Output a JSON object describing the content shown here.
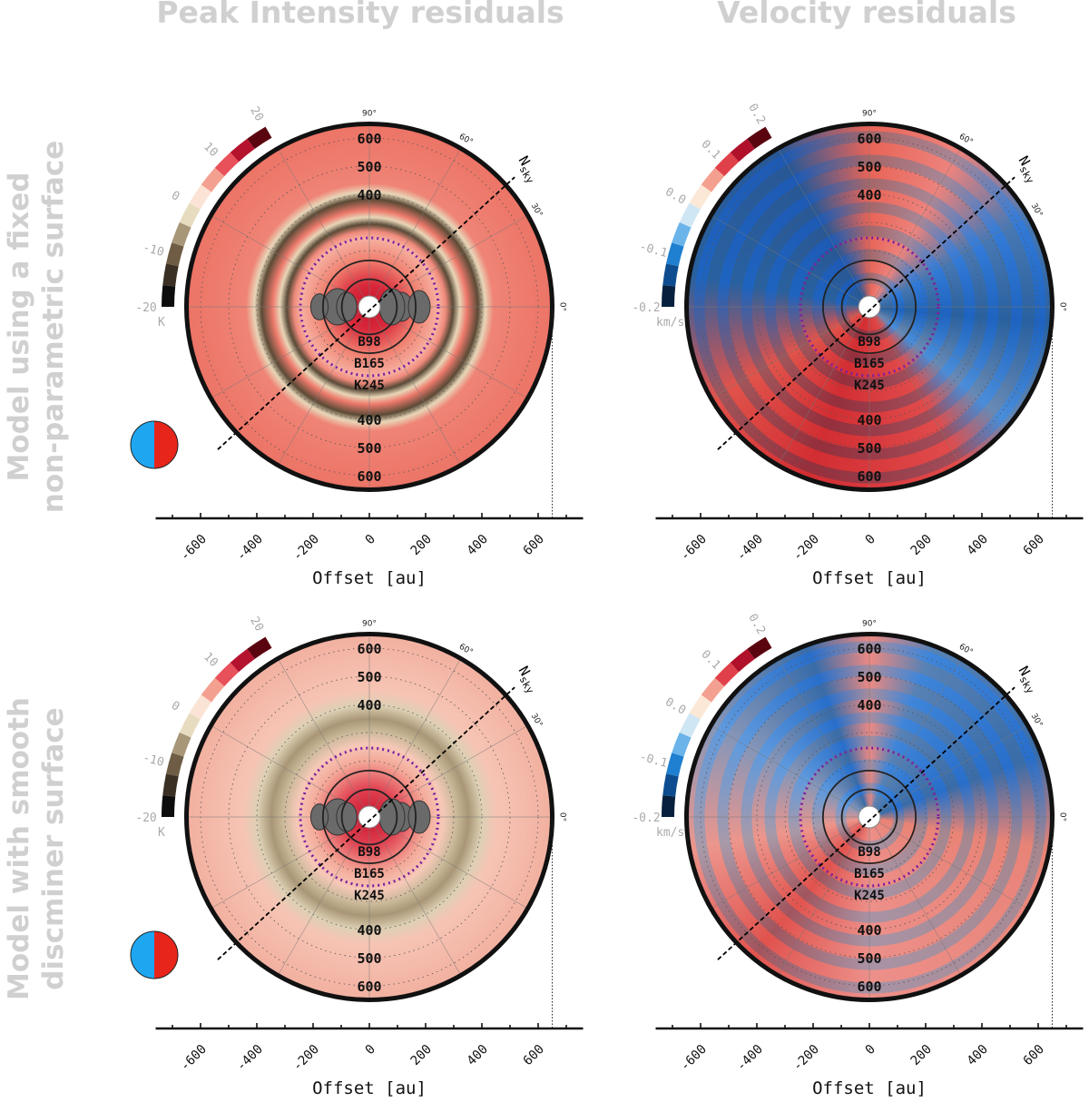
{
  "column_titles": [
    "Peak Intensity residuals",
    "Velocity residuals"
  ],
  "row_labels": [
    [
      "Model using a fixed",
      "non-parametric surface"
    ],
    [
      "Model with smooth",
      "discminer surface"
    ]
  ],
  "colors": {
    "red": "#e8251b",
    "blue": "#1ea7f0",
    "purple": "#7b1fa2",
    "label_gray": "#d0d0d0"
  },
  "chart_data": [
    {
      "type": "heatmap",
      "projection": "polar",
      "quantity": "Peak Intensity residuals",
      "row": 0,
      "colorbar": {
        "ticks": [
          "-20",
          "-10",
          "0",
          "10",
          "20"
        ],
        "range": [
          -20,
          20
        ],
        "unit": "K",
        "colormap": "black-brown-cream-red"
      },
      "radial_labels": [
        "400",
        "500",
        "600"
      ],
      "gap_labels": [
        "B98",
        "B165",
        "K245"
      ],
      "gap_radii": [
        98,
        165,
        245
      ],
      "angle_labels": [
        "90°",
        "60°",
        "30°",
        "0°"
      ],
      "north_label": "N",
      "north_sub": "sky",
      "xticks": [
        "-600",
        "-400",
        "-200",
        "0",
        "200",
        "400",
        "600"
      ],
      "xlabel": "Offset [au]",
      "xlim": [
        -750,
        750
      ],
      "rmax": 650
    },
    {
      "type": "heatmap",
      "projection": "polar",
      "quantity": "Velocity residuals",
      "row": 0,
      "colorbar": {
        "ticks": [
          "-0.2",
          "-0.1",
          "0.0",
          "0.1",
          "0.2"
        ],
        "range": [
          -0.2,
          0.2
        ],
        "unit": "km/s",
        "colormap": "RdBu_r"
      },
      "radial_labels": [
        "400",
        "500",
        "600"
      ],
      "gap_labels": [
        "B98",
        "B165",
        "K245"
      ],
      "gap_radii": [
        98,
        165,
        245
      ],
      "angle_labels": [
        "90°",
        "60°",
        "30°",
        "0°"
      ],
      "north_label": "N",
      "north_sub": "sky",
      "xticks": [
        "-600",
        "-400",
        "-200",
        "0",
        "200",
        "400",
        "600"
      ],
      "xlabel": "Offset [au]",
      "xlim": [
        -750,
        750
      ],
      "rmax": 650
    },
    {
      "type": "heatmap",
      "projection": "polar",
      "quantity": "Peak Intensity residuals",
      "row": 1,
      "colorbar": {
        "ticks": [
          "-20",
          "-10",
          "0",
          "10",
          "20"
        ],
        "range": [
          -20,
          20
        ],
        "unit": "K",
        "colormap": "black-brown-cream-red"
      },
      "radial_labels": [
        "400",
        "500",
        "600"
      ],
      "gap_labels": [
        "B98",
        "B165",
        "K245"
      ],
      "gap_radii": [
        98,
        165,
        245
      ],
      "angle_labels": [
        "90°",
        "60°",
        "30°",
        "0°"
      ],
      "north_label": "N",
      "north_sub": "sky",
      "xticks": [
        "-600",
        "-400",
        "-200",
        "0",
        "200",
        "400",
        "600"
      ],
      "xlabel": "Offset [au]",
      "xlim": [
        -750,
        750
      ],
      "rmax": 650
    },
    {
      "type": "heatmap",
      "projection": "polar",
      "quantity": "Velocity residuals",
      "row": 1,
      "colorbar": {
        "ticks": [
          "-0.2",
          "-0.1",
          "0.0",
          "0.1",
          "0.2"
        ],
        "range": [
          -0.2,
          0.2
        ],
        "unit": "km/s",
        "colormap": "RdBu_r"
      },
      "radial_labels": [
        "400",
        "500",
        "600"
      ],
      "gap_labels": [
        "B98",
        "B165",
        "K245"
      ],
      "gap_radii": [
        98,
        165,
        245
      ],
      "angle_labels": [
        "90°",
        "60°",
        "30°",
        "0°"
      ],
      "north_label": "N",
      "north_sub": "sky",
      "xticks": [
        "-600",
        "-400",
        "-200",
        "0",
        "200",
        "400",
        "600"
      ],
      "xlabel": "Offset [au]",
      "xlim": [
        -750,
        750
      ],
      "rmax": 650
    }
  ]
}
